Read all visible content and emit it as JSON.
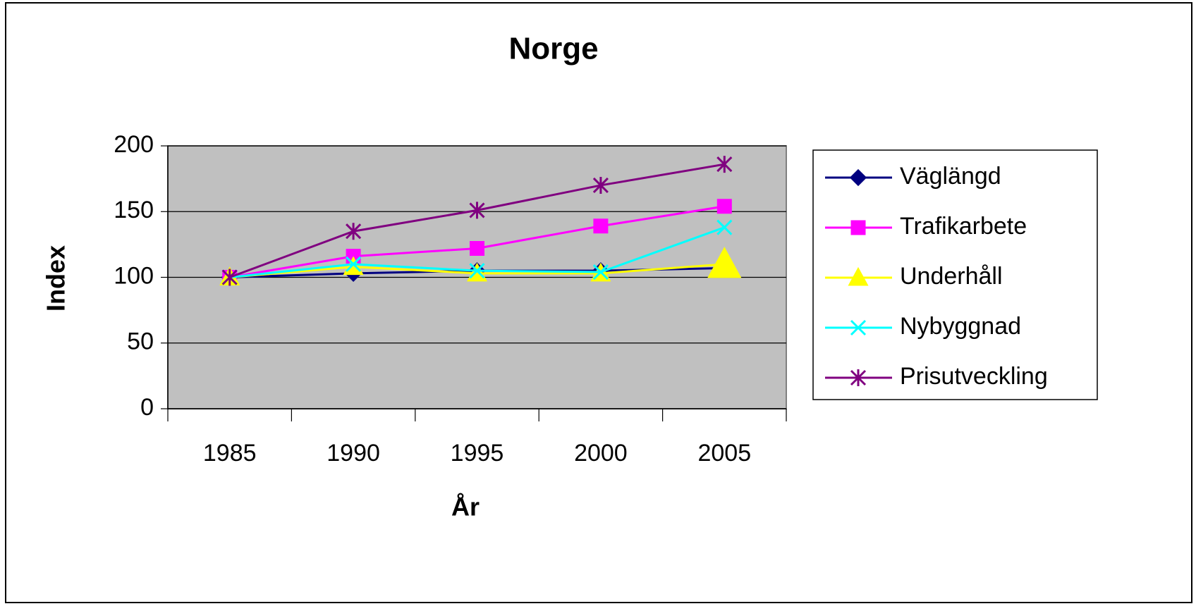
{
  "chart_data": {
    "type": "line",
    "title": "Norge",
    "x_label": "År",
    "y_label": "Index",
    "categories": [
      "1985",
      "1990",
      "1995",
      "2000",
      "2005"
    ],
    "series": [
      {
        "name": "Väglängd",
        "color": "#000080",
        "marker": "diamond",
        "values": [
          100,
          103,
          105,
          105,
          107
        ]
      },
      {
        "name": "Trafikarbete",
        "color": "#ff00ff",
        "marker": "square",
        "values": [
          100,
          116,
          122,
          139,
          154
        ]
      },
      {
        "name": "Underhåll",
        "color": "#ffff00",
        "marker": "triangle",
        "values": [
          100,
          108,
          103,
          103,
          110
        ]
      },
      {
        "name": "Nybyggnad",
        "color": "#00ffff",
        "marker": "x",
        "values": [
          100,
          110,
          105,
          104,
          138
        ]
      },
      {
        "name": "Prisutveckling",
        "color": "#800080",
        "marker": "star",
        "values": [
          100,
          135,
          151,
          170,
          186
        ]
      }
    ],
    "ylim": [
      0,
      200
    ],
    "yticks": [
      0,
      50,
      100,
      150,
      200
    ],
    "grid": true,
    "legend": "right",
    "plot_background": "#c0c0c0"
  }
}
